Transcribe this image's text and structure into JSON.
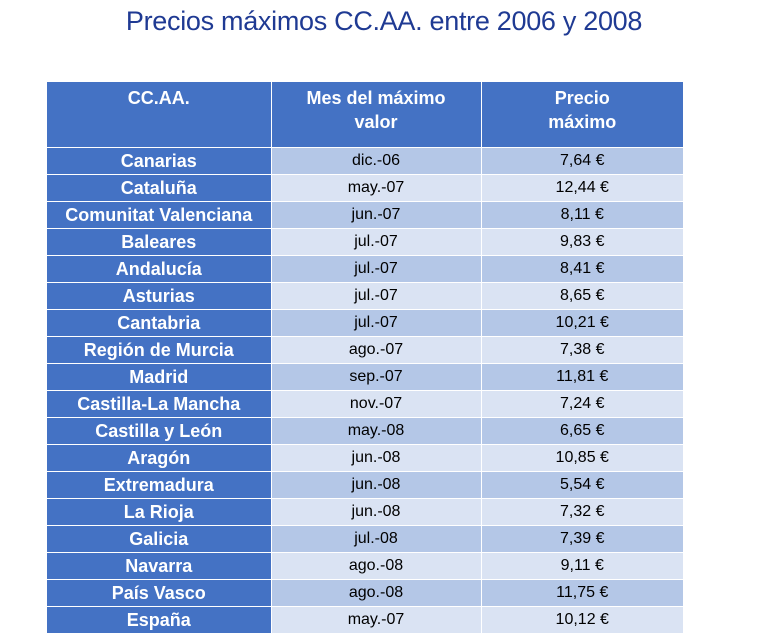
{
  "title": "Precios máximos CC.AA. entre 2006 y 2008",
  "table": {
    "headers": [
      "CC.AA.",
      "Mes del máximo valor",
      "Precio máximo"
    ],
    "rows": [
      [
        "Canarias",
        "dic.-06",
        "7,64 €"
      ],
      [
        "Cataluña",
        "may.-07",
        "12,44 €"
      ],
      [
        "Comunitat Valenciana",
        "jun.-07",
        "8,11 €"
      ],
      [
        "Baleares",
        "jul.-07",
        "9,83 €"
      ],
      [
        "Andalucía",
        "jul.-07",
        "8,41 €"
      ],
      [
        "Asturias",
        "jul.-07",
        "8,65 €"
      ],
      [
        "Cantabria",
        "jul.-07",
        "10,21 €"
      ],
      [
        "Región de Murcia",
        "ago.-07",
        "7,38 €"
      ],
      [
        "Madrid",
        "sep.-07",
        "11,81 €"
      ],
      [
        "Castilla-La Mancha",
        "nov.-07",
        "7,24 €"
      ],
      [
        "Castilla y León",
        "may.-08",
        "6,65 €"
      ],
      [
        "Aragón",
        "jun.-08",
        "10,85 €"
      ],
      [
        "Extremadura",
        "jun.-08",
        "5,54 €"
      ],
      [
        "La Rioja",
        "jun.-08",
        "7,32 €"
      ],
      [
        "Galicia",
        "jul.-08",
        "7,39 €"
      ],
      [
        "Navarra",
        "ago.-08",
        "9,11 €"
      ],
      [
        "País Vasco",
        "ago.-08",
        "11,75 €"
      ],
      [
        "España",
        "may.-07",
        "10,12 €"
      ]
    ]
  },
  "colors": {
    "title": "#1f3a93",
    "header_bg": "#4472c4",
    "row_dark": "#b4c7e7",
    "row_light": "#dae3f3"
  }
}
